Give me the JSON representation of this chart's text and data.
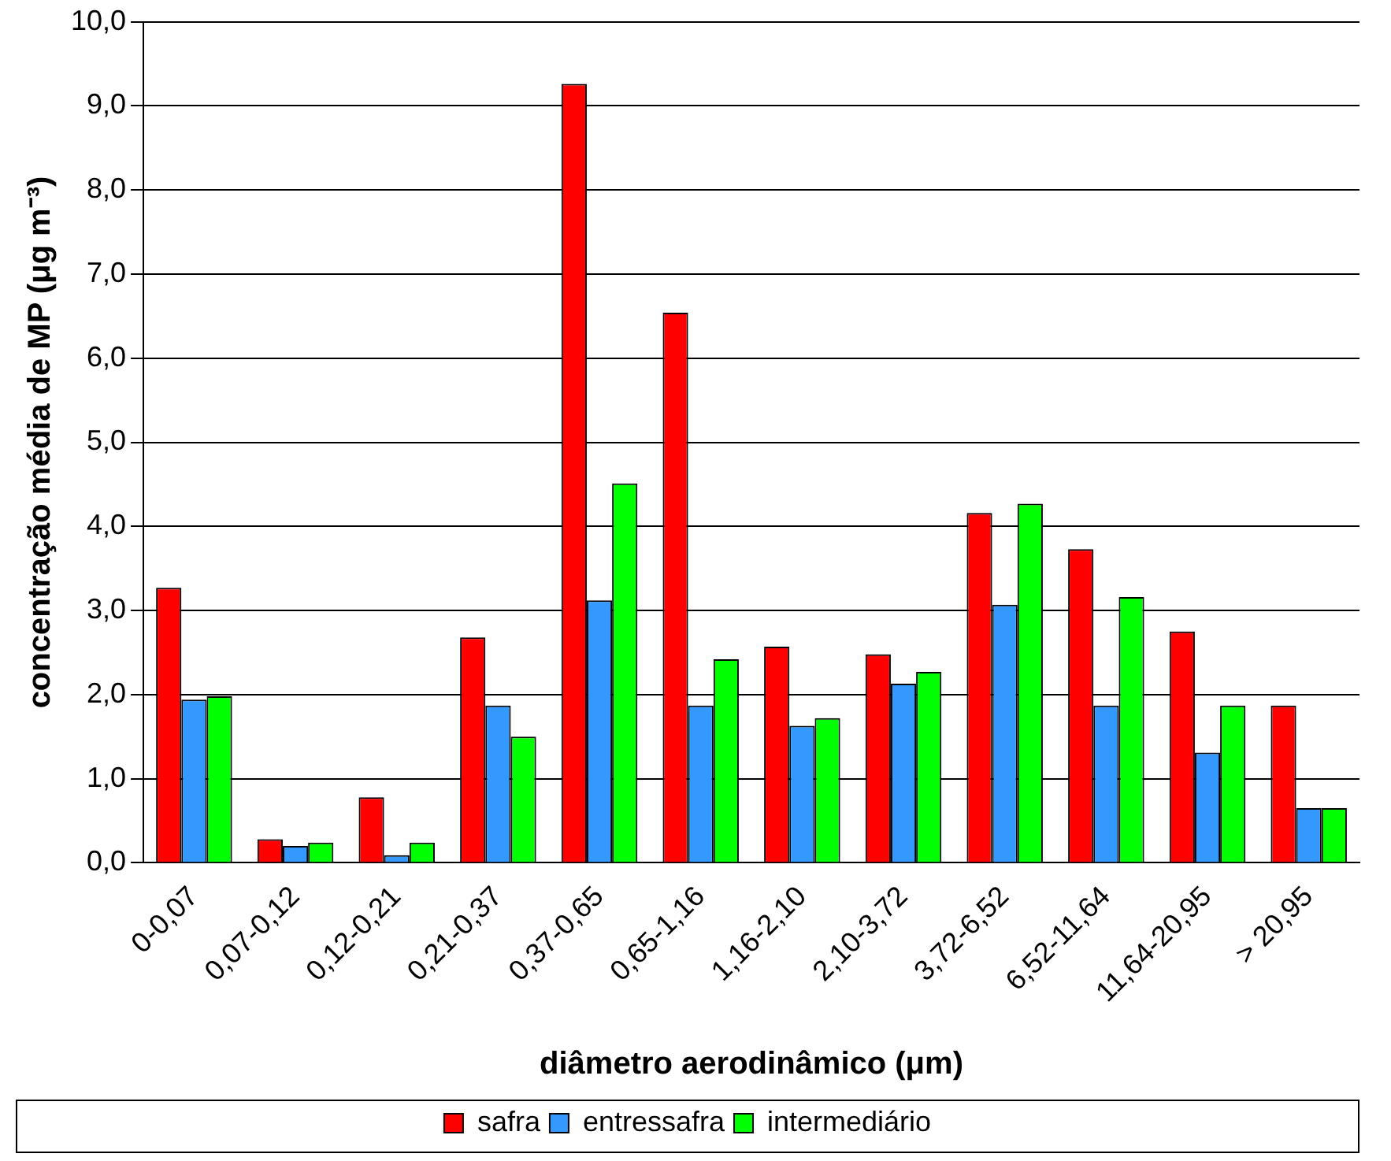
{
  "chart_data": {
    "type": "bar",
    "xlabel": "diâmetro aerodinâmico (μm)",
    "ylabel": "concentração média de MP (μg m⁻³)",
    "categories": [
      "0-0,07",
      "0,07-0,12",
      "0,12-0,21",
      "0,21-0,37",
      "0,37-0,65",
      "0,65-1,16",
      "1,16-2,10",
      "2,10-3,72",
      "3,72-6,52",
      "6,52-11,64",
      "11,64-20,95",
      "> 20,95"
    ],
    "series": [
      {
        "name": "safra",
        "color": "#ff0000",
        "values": [
          3.27,
          0.28,
          0.78,
          2.68,
          9.26,
          6.54,
          2.57,
          2.48,
          4.16,
          3.73,
          2.75,
          1.87
        ]
      },
      {
        "name": "entressafra",
        "color": "#3399ff",
        "values": [
          1.94,
          0.2,
          0.09,
          1.87,
          3.12,
          1.87,
          1.63,
          2.13,
          3.07,
          1.87,
          1.31,
          0.65
        ]
      },
      {
        "name": "intermediário",
        "color": "#00ff00",
        "values": [
          1.98,
          0.24,
          0.24,
          1.5,
          4.51,
          2.42,
          1.72,
          2.27,
          4.27,
          3.16,
          1.87,
          0.65
        ]
      }
    ],
    "ylim": [
      0,
      10
    ],
    "yticks": [
      {
        "value": 0,
        "label": "0,0"
      },
      {
        "value": 1,
        "label": "1,0"
      },
      {
        "value": 2,
        "label": "2,0"
      },
      {
        "value": 3,
        "label": "3,0"
      },
      {
        "value": 4,
        "label": "4,0"
      },
      {
        "value": 5,
        "label": "5,0"
      },
      {
        "value": 6,
        "label": "6,0"
      },
      {
        "value": 7,
        "label": "7,0"
      },
      {
        "value": 8,
        "label": "8,0"
      },
      {
        "value": 9,
        "label": "9,0"
      },
      {
        "value": 10,
        "label": "10,0"
      }
    ],
    "grid": "y",
    "legend": "bottom"
  }
}
